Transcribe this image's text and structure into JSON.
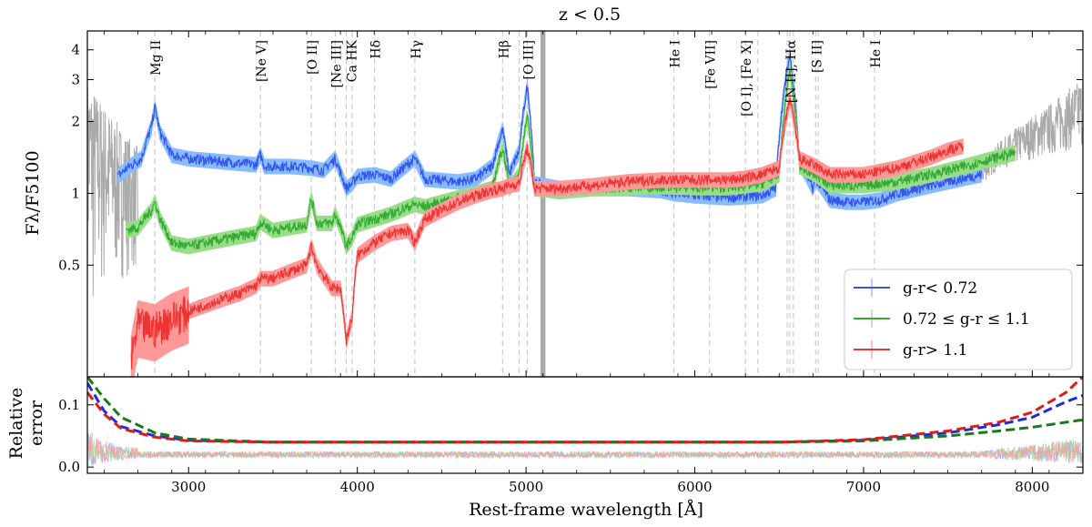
{
  "chart_data": {
    "type": "line",
    "title": "z < 0.5",
    "xlabel": "Rest-frame wavelength [Å]",
    "top_panel": {
      "ylabel": "Fλ/F5100",
      "yscale": "log",
      "ylim": [
        0.17,
        4.8
      ],
      "yticks": [
        0.5,
        1,
        2,
        3,
        4
      ],
      "ytick_labels": [
        "0.5",
        "1",
        "2",
        "3",
        "4"
      ]
    },
    "bottom_panel": {
      "ylabel_line1": "Relative",
      "ylabel_line2": "error",
      "ylim": [
        -0.01,
        0.145
      ],
      "yticks": [
        0.0,
        0.1
      ],
      "ytick_labels": [
        "0.0",
        "0.1"
      ]
    },
    "xlim": [
      2400,
      8300
    ],
    "xticks": [
      3000,
      4000,
      5000,
      6000,
      7000,
      8000
    ],
    "xtick_labels": [
      "3000",
      "4000",
      "5000",
      "6000",
      "7000",
      "8000"
    ],
    "shaded_band": [
      5085,
      5115
    ],
    "emission_lines": [
      {
        "label": "Mg II",
        "x": 2800
      },
      {
        "label": "[Ne V]",
        "x": 3426
      },
      {
        "label": "[O II]",
        "x": 3727
      },
      {
        "label": "[Ne III]",
        "x": 3869
      },
      {
        "label": "Ca HK",
        "x": 3950
      },
      {
        "label": "Hδ",
        "x": 4102
      },
      {
        "label": "Hγ",
        "x": 4341
      },
      {
        "label": "Hβ",
        "x": 4861
      },
      {
        "label": "[O III]",
        "x": 5007
      },
      {
        "label": "He I",
        "x": 5876
      },
      {
        "label": "[Fe VII]",
        "x": 6087
      },
      {
        "label": "[O I], [Fe X]",
        "x": 6300
      },
      {
        "label": "[N II], Hα",
        "x": 6563
      },
      {
        "label": "[S II]",
        "x": 6716
      },
      {
        "label": "He I",
        "x": 7065
      }
    ],
    "extra_dashed_lines": [
      2800,
      3426,
      3727,
      3869,
      3934,
      3969,
      4102,
      4341,
      4861,
      4959,
      5007,
      5876,
      6087,
      6300,
      6374,
      6548,
      6563,
      6584,
      6716,
      6731,
      7065
    ],
    "legend": [
      {
        "label": "g-r< 0.72",
        "color": "#3355ee"
      },
      {
        "label": "0.72 ≤ g-r ≤ 1.1",
        "color": "#33aa33"
      },
      {
        "label": "g-r> 1.1",
        "color": "#ee3333"
      }
    ],
    "series": [
      {
        "name": "g-r< 0.72",
        "color": "#3355ee",
        "range": [
          2580,
          7700
        ],
        "points": [
          [
            2580,
            1.18
          ],
          [
            2650,
            1.3
          ],
          [
            2720,
            1.4
          ],
          [
            2780,
            1.9
          ],
          [
            2800,
            2.3
          ],
          [
            2830,
            1.8
          ],
          [
            2900,
            1.45
          ],
          [
            3000,
            1.4
          ],
          [
            3100,
            1.38
          ],
          [
            3200,
            1.36
          ],
          [
            3300,
            1.34
          ],
          [
            3400,
            1.32
          ],
          [
            3426,
            1.45
          ],
          [
            3450,
            1.3
          ],
          [
            3600,
            1.3
          ],
          [
            3727,
            1.28
          ],
          [
            3800,
            1.25
          ],
          [
            3869,
            1.4
          ],
          [
            3900,
            1.22
          ],
          [
            3934,
            1.05
          ],
          [
            3969,
            1.1
          ],
          [
            4000,
            1.18
          ],
          [
            4102,
            1.2
          ],
          [
            4200,
            1.15
          ],
          [
            4341,
            1.4
          ],
          [
            4400,
            1.15
          ],
          [
            4600,
            1.12
          ],
          [
            4700,
            1.15
          ],
          [
            4800,
            1.3
          ],
          [
            4861,
            1.85
          ],
          [
            4900,
            1.2
          ],
          [
            4959,
            1.5
          ],
          [
            5007,
            2.8
          ],
          [
            5050,
            1.1
          ],
          [
            5200,
            1.05
          ],
          [
            5400,
            1.05
          ],
          [
            5600,
            1.05
          ],
          [
            5800,
            1.03
          ],
          [
            5876,
            1.0
          ],
          [
            6000,
            0.98
          ],
          [
            6200,
            0.96
          ],
          [
            6300,
            0.97
          ],
          [
            6400,
            0.98
          ],
          [
            6480,
            1.05
          ],
          [
            6563,
            3.8
          ],
          [
            6620,
            1.35
          ],
          [
            6700,
            1.05
          ],
          [
            6716,
            1.15
          ],
          [
            6800,
            0.94
          ],
          [
            6900,
            0.92
          ],
          [
            7000,
            0.92
          ],
          [
            7100,
            0.94
          ],
          [
            7200,
            1.0
          ],
          [
            7300,
            1.04
          ],
          [
            7400,
            1.08
          ],
          [
            7500,
            1.12
          ],
          [
            7600,
            1.16
          ],
          [
            7700,
            1.2
          ]
        ]
      },
      {
        "name": "0.72 ≤ g-r ≤ 1.1",
        "color": "#33aa33",
        "range": [
          2630,
          7900
        ],
        "points": [
          [
            2630,
            0.7
          ],
          [
            2700,
            0.72
          ],
          [
            2780,
            0.85
          ],
          [
            2800,
            0.92
          ],
          [
            2830,
            0.78
          ],
          [
            2900,
            0.62
          ],
          [
            3000,
            0.6
          ],
          [
            3100,
            0.62
          ],
          [
            3200,
            0.64
          ],
          [
            3300,
            0.66
          ],
          [
            3400,
            0.68
          ],
          [
            3426,
            0.76
          ],
          [
            3500,
            0.7
          ],
          [
            3600,
            0.72
          ],
          [
            3700,
            0.74
          ],
          [
            3727,
            0.95
          ],
          [
            3760,
            0.75
          ],
          [
            3850,
            0.75
          ],
          [
            3869,
            0.82
          ],
          [
            3900,
            0.72
          ],
          [
            3934,
            0.6
          ],
          [
            3969,
            0.65
          ],
          [
            4000,
            0.74
          ],
          [
            4102,
            0.78
          ],
          [
            4200,
            0.82
          ],
          [
            4341,
            0.9
          ],
          [
            4400,
            0.88
          ],
          [
            4500,
            0.92
          ],
          [
            4600,
            0.96
          ],
          [
            4700,
            1.0
          ],
          [
            4800,
            1.05
          ],
          [
            4861,
            1.55
          ],
          [
            4900,
            1.05
          ],
          [
            4959,
            1.2
          ],
          [
            5007,
            2.1
          ],
          [
            5050,
            1.05
          ],
          [
            5200,
            1.02
          ],
          [
            5400,
            1.05
          ],
          [
            5600,
            1.06
          ],
          [
            5800,
            1.07
          ],
          [
            6000,
            1.06
          ],
          [
            6200,
            1.06
          ],
          [
            6300,
            1.08
          ],
          [
            6400,
            1.1
          ],
          [
            6500,
            1.2
          ],
          [
            6563,
            3.3
          ],
          [
            6620,
            1.3
          ],
          [
            6716,
            1.2
          ],
          [
            6800,
            1.08
          ],
          [
            7000,
            1.08
          ],
          [
            7200,
            1.12
          ],
          [
            7400,
            1.2
          ],
          [
            7600,
            1.3
          ],
          [
            7800,
            1.42
          ],
          [
            7900,
            1.48
          ]
        ]
      },
      {
        "name": "g-r> 1.1",
        "color": "#ee3333",
        "range": [
          2660,
          7590
        ],
        "points": [
          [
            2660,
            0.2
          ],
          [
            2700,
            0.28
          ],
          [
            2800,
            0.27
          ],
          [
            2900,
            0.3
          ],
          [
            3000,
            0.32
          ],
          [
            3100,
            0.34
          ],
          [
            3200,
            0.36
          ],
          [
            3300,
            0.38
          ],
          [
            3400,
            0.41
          ],
          [
            3426,
            0.44
          ],
          [
            3500,
            0.44
          ],
          [
            3600,
            0.47
          ],
          [
            3700,
            0.5
          ],
          [
            3727,
            0.6
          ],
          [
            3760,
            0.5
          ],
          [
            3800,
            0.45
          ],
          [
            3850,
            0.4
          ],
          [
            3900,
            0.4
          ],
          [
            3934,
            0.24
          ],
          [
            3969,
            0.3
          ],
          [
            4000,
            0.55
          ],
          [
            4100,
            0.62
          ],
          [
            4200,
            0.68
          ],
          [
            4300,
            0.7
          ],
          [
            4341,
            0.62
          ],
          [
            4400,
            0.78
          ],
          [
            4500,
            0.85
          ],
          [
            4600,
            0.92
          ],
          [
            4700,
            0.98
          ],
          [
            4800,
            1.03
          ],
          [
            4861,
            1.05
          ],
          [
            4900,
            1.08
          ],
          [
            4959,
            1.1
          ],
          [
            5007,
            1.55
          ],
          [
            5050,
            1.05
          ],
          [
            5200,
            1.05
          ],
          [
            5400,
            1.08
          ],
          [
            5600,
            1.12
          ],
          [
            5800,
            1.14
          ],
          [
            6000,
            1.14
          ],
          [
            6200,
            1.14
          ],
          [
            6300,
            1.16
          ],
          [
            6400,
            1.2
          ],
          [
            6500,
            1.28
          ],
          [
            6563,
            2.5
          ],
          [
            6620,
            1.4
          ],
          [
            6716,
            1.3
          ],
          [
            6800,
            1.2
          ],
          [
            7000,
            1.2
          ],
          [
            7200,
            1.28
          ],
          [
            7400,
            1.42
          ],
          [
            7500,
            1.52
          ],
          [
            7590,
            1.58
          ]
        ]
      },
      {
        "name": "composite (gray)",
        "color": "#aaaaaa",
        "points": [
          [
            2400,
            1.2
          ],
          [
            2430,
            2.0
          ],
          [
            2460,
            0.5
          ],
          [
            2500,
            1.4
          ],
          [
            2540,
            0.7
          ],
          [
            2580,
            1.6
          ],
          [
            2620,
            0.9
          ],
          [
            2660,
            1.4
          ],
          [
            7700,
            1.2
          ],
          [
            7800,
            1.45
          ],
          [
            7900,
            1.6
          ],
          [
            8000,
            1.75
          ],
          [
            8100,
            1.9
          ],
          [
            8200,
            2.1
          ],
          [
            8300,
            2.3
          ]
        ]
      }
    ],
    "error_curves": [
      {
        "name": "g-r< 0.72",
        "color": "#1a2fd6",
        "points": [
          [
            2400,
            0.135
          ],
          [
            2500,
            0.09
          ],
          [
            2600,
            0.065
          ],
          [
            2800,
            0.05
          ],
          [
            3000,
            0.043
          ],
          [
            3500,
            0.04
          ],
          [
            6500,
            0.04
          ],
          [
            7000,
            0.043
          ],
          [
            7500,
            0.055
          ],
          [
            7800,
            0.068
          ],
          [
            8000,
            0.08
          ],
          [
            8200,
            0.105
          ],
          [
            8300,
            0.115
          ]
        ]
      },
      {
        "name": "0.72 ≤ g-r ≤ 1.1",
        "color": "#1a7a1a",
        "points": [
          [
            2400,
            0.145
          ],
          [
            2500,
            0.11
          ],
          [
            2600,
            0.08
          ],
          [
            2800,
            0.055
          ],
          [
            3000,
            0.045
          ],
          [
            3500,
            0.04
          ],
          [
            6500,
            0.04
          ],
          [
            7000,
            0.042
          ],
          [
            7500,
            0.05
          ],
          [
            7800,
            0.058
          ],
          [
            8000,
            0.064
          ],
          [
            8200,
            0.072
          ],
          [
            8300,
            0.076
          ]
        ]
      },
      {
        "name": "g-r> 1.1",
        "color": "#e01a1a",
        "points": [
          [
            2400,
            0.12
          ],
          [
            2500,
            0.085
          ],
          [
            2600,
            0.062
          ],
          [
            2800,
            0.048
          ],
          [
            3000,
            0.042
          ],
          [
            3500,
            0.04
          ],
          [
            6500,
            0.04
          ],
          [
            7000,
            0.044
          ],
          [
            7500,
            0.058
          ],
          [
            7800,
            0.072
          ],
          [
            8000,
            0.088
          ],
          [
            8200,
            0.12
          ],
          [
            8300,
            0.145
          ]
        ]
      }
    ]
  }
}
